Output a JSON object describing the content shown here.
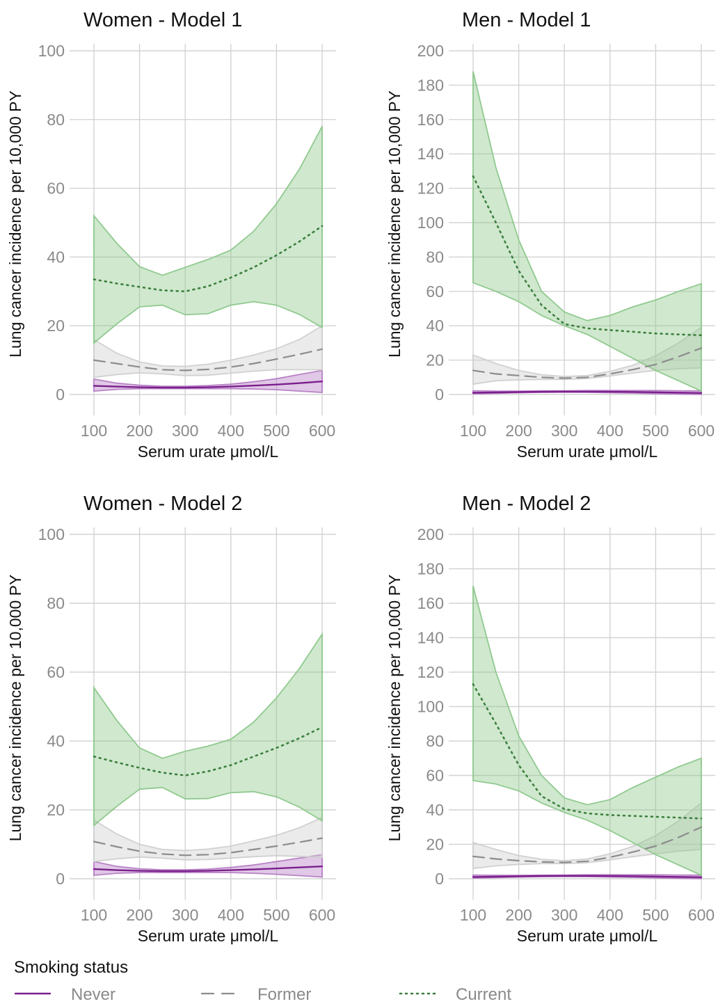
{
  "chart_data": [
    {
      "type": "line",
      "title": "Women - Model 1",
      "xlabel": "Serum urate μmol/L",
      "ylabel": "Lung cancer incidence per 10,000 PY",
      "xlim": [
        100,
        600
      ],
      "ylim": [
        0,
        100
      ],
      "xticks": [
        100,
        200,
        300,
        400,
        500,
        600
      ],
      "yticks": [
        0,
        20,
        40,
        60,
        80,
        100
      ],
      "grid": true,
      "series": [
        {
          "name": "Never",
          "color": "#7b1f8c",
          "style": "solid",
          "x": [
            100,
            150,
            200,
            250,
            300,
            350,
            400,
            450,
            500,
            550,
            600
          ],
          "y": [
            2.5,
            2.3,
            2.1,
            2.0,
            2.0,
            2.1,
            2.3,
            2.6,
            2.9,
            3.3,
            3.8
          ],
          "lower": [
            1.0,
            1.5,
            1.7,
            1.7,
            1.7,
            1.7,
            1.7,
            1.6,
            1.4,
            1.0,
            0.6
          ],
          "upper": [
            4.5,
            3.3,
            2.7,
            2.4,
            2.4,
            2.6,
            3.0,
            3.7,
            4.6,
            5.8,
            7.0
          ]
        },
        {
          "name": "Former",
          "color": "#8c8c8c",
          "style": "dashed",
          "x": [
            100,
            150,
            200,
            250,
            300,
            350,
            400,
            450,
            500,
            550,
            600
          ],
          "y": [
            10.0,
            9.0,
            8.0,
            7.2,
            7.0,
            7.3,
            8.0,
            9.0,
            10.3,
            11.7,
            13.2
          ],
          "lower": [
            5.0,
            5.8,
            6.3,
            6.0,
            5.5,
            5.6,
            6.2,
            6.8,
            7.2,
            7.2,
            7.2
          ],
          "upper": [
            16.0,
            12.0,
            9.5,
            8.3,
            8.2,
            8.8,
            10.0,
            11.5,
            13.3,
            16.0,
            20.0
          ]
        },
        {
          "name": "Current",
          "color": "#3d7f3d",
          "style": "dotted",
          "x": [
            100,
            150,
            200,
            250,
            300,
            350,
            400,
            450,
            500,
            550,
            600
          ],
          "y": [
            33.5,
            32.3,
            31.3,
            30.3,
            30.0,
            31.5,
            34.0,
            37.0,
            40.5,
            44.5,
            49.0
          ],
          "lower": [
            15.0,
            20.5,
            25.5,
            26.0,
            23.2,
            23.5,
            26.0,
            27.0,
            26.0,
            23.3,
            19.5
          ],
          "upper": [
            52.0,
            44.0,
            37.2,
            34.7,
            37.0,
            39.3,
            42.0,
            47.5,
            55.5,
            65.5,
            78.0
          ]
        }
      ]
    },
    {
      "type": "line",
      "title": "Men - Model 1",
      "xlabel": "Serum urate μmol/L",
      "ylabel": "Lung cancer incidence per 10,000 PY",
      "xlim": [
        100,
        600
      ],
      "ylim": [
        0,
        200
      ],
      "xticks": [
        100,
        200,
        300,
        400,
        500,
        600
      ],
      "yticks": [
        0,
        20,
        40,
        60,
        80,
        100,
        120,
        140,
        160,
        180,
        200
      ],
      "grid": true,
      "series": [
        {
          "name": "Never",
          "color": "#7b1f8c",
          "style": "solid",
          "x": [
            100,
            150,
            200,
            250,
            300,
            350,
            400,
            450,
            500,
            550,
            600
          ],
          "y": [
            1.0,
            1.2,
            1.4,
            1.6,
            1.7,
            1.7,
            1.6,
            1.5,
            1.3,
            1.1,
            0.9
          ],
          "lower": [
            0.4,
            0.7,
            1.0,
            1.2,
            1.3,
            1.2,
            1.0,
            0.8,
            0.5,
            0.3,
            0.1
          ],
          "upper": [
            2.2,
            2.0,
            2.0,
            2.1,
            2.2,
            2.3,
            2.3,
            2.3,
            2.3,
            2.2,
            2.1
          ]
        },
        {
          "name": "Former",
          "color": "#8c8c8c",
          "style": "dashed",
          "x": [
            100,
            150,
            200,
            250,
            300,
            350,
            400,
            450,
            500,
            550,
            600
          ],
          "y": [
            14.0,
            12.0,
            11.0,
            10.0,
            9.5,
            10.0,
            12.0,
            14.5,
            17.5,
            22.0,
            27.0
          ],
          "lower": [
            6.0,
            8.0,
            8.5,
            8.8,
            8.8,
            9.3,
            10.8,
            12.5,
            14.0,
            15.0,
            15.5
          ],
          "upper": [
            23.0,
            18.0,
            14.0,
            11.5,
            10.5,
            11.0,
            13.5,
            17.0,
            22.5,
            30.0,
            39.0
          ]
        },
        {
          "name": "Current",
          "color": "#3d7f3d",
          "style": "dotted",
          "x": [
            100,
            150,
            200,
            250,
            300,
            350,
            400,
            450,
            500,
            550,
            600
          ],
          "y": [
            127.0,
            100.0,
            72.0,
            52.0,
            41.0,
            38.5,
            37.5,
            36.5,
            35.5,
            35.0,
            34.5
          ],
          "lower": [
            65.0,
            60.0,
            54.0,
            46.0,
            40.0,
            35.0,
            28.0,
            21.0,
            14.0,
            8.0,
            2.0
          ],
          "upper": [
            188.0,
            132.0,
            90.0,
            60.0,
            48.0,
            43.0,
            46.0,
            51.0,
            55.0,
            60.0,
            64.5
          ]
        }
      ]
    },
    {
      "type": "line",
      "title": "Women - Model 2",
      "xlabel": "Serum urate μmol/L",
      "ylabel": "Lung cancer incidence per 10,000 PY",
      "xlim": [
        100,
        600
      ],
      "ylim": [
        0,
        100
      ],
      "xticks": [
        100,
        200,
        300,
        400,
        500,
        600
      ],
      "yticks": [
        0,
        20,
        40,
        60,
        80,
        100
      ],
      "grid": true,
      "series": [
        {
          "name": "Never",
          "color": "#7b1f8c",
          "style": "solid",
          "x": [
            100,
            150,
            200,
            250,
            300,
            350,
            400,
            450,
            500,
            550,
            600
          ],
          "y": [
            2.8,
            2.5,
            2.3,
            2.2,
            2.2,
            2.3,
            2.5,
            2.7,
            3.0,
            3.3,
            3.6
          ],
          "lower": [
            1.0,
            1.6,
            1.8,
            1.8,
            1.8,
            1.8,
            1.8,
            1.6,
            1.3,
            0.9,
            0.5
          ],
          "upper": [
            5.0,
            3.6,
            2.9,
            2.6,
            2.6,
            2.8,
            3.3,
            4.0,
            5.0,
            6.0,
            7.0
          ]
        },
        {
          "name": "Former",
          "color": "#8c8c8c",
          "style": "dashed",
          "x": [
            100,
            150,
            200,
            250,
            300,
            350,
            400,
            450,
            500,
            550,
            600
          ],
          "y": [
            10.8,
            9.3,
            8.0,
            7.2,
            6.8,
            7.0,
            7.6,
            8.5,
            9.5,
            10.6,
            11.8
          ],
          "lower": [
            5.0,
            5.8,
            6.3,
            6.0,
            5.5,
            5.6,
            6.0,
            6.4,
            6.7,
            6.5,
            6.2
          ],
          "upper": [
            17.0,
            13.0,
            10.0,
            8.5,
            8.2,
            8.6,
            9.5,
            11.0,
            12.6,
            14.8,
            17.8
          ]
        },
        {
          "name": "Current",
          "color": "#3d7f3d",
          "style": "dotted",
          "x": [
            100,
            150,
            200,
            250,
            300,
            350,
            400,
            450,
            500,
            550,
            600
          ],
          "y": [
            35.5,
            33.8,
            32.2,
            30.8,
            30.0,
            31.2,
            33.0,
            35.5,
            38.0,
            40.8,
            44.0
          ],
          "lower": [
            15.5,
            21.0,
            26.0,
            26.5,
            23.2,
            23.3,
            25.0,
            25.3,
            23.8,
            20.8,
            16.8
          ],
          "upper": [
            55.5,
            46.0,
            38.0,
            35.0,
            37.0,
            38.5,
            40.5,
            45.5,
            52.5,
            61.0,
            71.0
          ]
        }
      ]
    },
    {
      "type": "line",
      "title": "Men - Model 2",
      "xlabel": "Serum urate μmol/L",
      "ylabel": "Lung cancer incidence per 10,000 PY",
      "xlim": [
        100,
        600
      ],
      "ylim": [
        0,
        200
      ],
      "xticks": [
        100,
        200,
        300,
        400,
        500,
        600
      ],
      "yticks": [
        0,
        20,
        40,
        60,
        80,
        100,
        120,
        140,
        160,
        180,
        200
      ],
      "grid": true,
      "series": [
        {
          "name": "Never",
          "color": "#7b1f8c",
          "style": "solid",
          "x": [
            100,
            150,
            200,
            250,
            300,
            350,
            400,
            450,
            500,
            550,
            600
          ],
          "y": [
            1.0,
            1.2,
            1.4,
            1.6,
            1.7,
            1.7,
            1.6,
            1.5,
            1.3,
            1.1,
            0.9
          ],
          "lower": [
            0.4,
            0.7,
            1.0,
            1.2,
            1.3,
            1.2,
            1.0,
            0.8,
            0.5,
            0.3,
            0.1
          ],
          "upper": [
            2.2,
            2.0,
            2.0,
            2.1,
            2.2,
            2.3,
            2.3,
            2.3,
            2.3,
            2.2,
            2.1
          ]
        },
        {
          "name": "Former",
          "color": "#8c8c8c",
          "style": "dashed",
          "x": [
            100,
            150,
            200,
            250,
            300,
            350,
            400,
            450,
            500,
            550,
            600
          ],
          "y": [
            13.0,
            11.5,
            10.5,
            9.8,
            9.5,
            10.2,
            12.5,
            15.5,
            19.0,
            24.0,
            30.0
          ],
          "lower": [
            6.0,
            7.5,
            8.3,
            8.8,
            8.8,
            9.3,
            11.0,
            12.8,
            14.5,
            16.0,
            17.0
          ],
          "upper": [
            21.0,
            17.0,
            13.5,
            11.3,
            10.5,
            11.5,
            14.5,
            18.8,
            25.0,
            33.5,
            44.0
          ]
        },
        {
          "name": "Current",
          "color": "#3d7f3d",
          "style": "dotted",
          "x": [
            100,
            150,
            200,
            250,
            300,
            350,
            400,
            450,
            500,
            550,
            600
          ],
          "y": [
            113.0,
            90.0,
            66.0,
            48.0,
            40.5,
            38.0,
            37.0,
            36.5,
            36.0,
            35.5,
            35.0
          ],
          "lower": [
            57.0,
            55.0,
            51.0,
            44.0,
            38.5,
            34.0,
            28.0,
            21.0,
            14.0,
            8.0,
            2.0
          ],
          "upper": [
            170.0,
            120.0,
            83.0,
            60.0,
            47.0,
            43.0,
            46.0,
            53.0,
            59.0,
            65.0,
            70.0
          ]
        }
      ]
    }
  ],
  "legend": {
    "title": "Smoking status",
    "placement": "bottom",
    "items": [
      {
        "label": "Never",
        "color": "#7b1f8c",
        "style": "solid"
      },
      {
        "label": "Former",
        "color": "#8c8c8c",
        "style": "dashed"
      },
      {
        "label": "Current",
        "color": "#3d7f3d",
        "style": "dotted"
      }
    ]
  },
  "band_colors": {
    "Never": "#b57dc4",
    "Former": "#cfcfcf",
    "Current": "#8cc78a"
  }
}
